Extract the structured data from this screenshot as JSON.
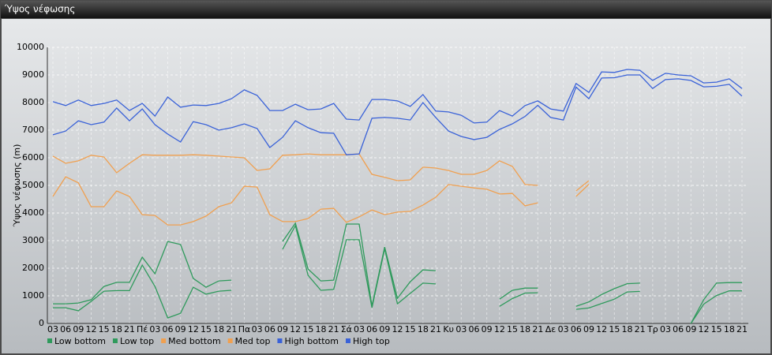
{
  "chart_data": {
    "type": "line",
    "title": "Ύψος νέφωσης",
    "y_label": "Ύψος νέφωσης (m)",
    "categories": [
      "03",
      "06",
      "09",
      "12",
      "15",
      "18",
      "21",
      "Πέ",
      "03",
      "06",
      "09",
      "12",
      "15",
      "18",
      "21",
      "Πα",
      "03",
      "06",
      "09",
      "12",
      "15",
      "18",
      "21",
      "Σά",
      "03",
      "06",
      "09",
      "12",
      "15",
      "18",
      "21",
      "Κυ",
      "03",
      "06",
      "09",
      "12",
      "15",
      "18",
      "21",
      "Δε",
      "03",
      "06",
      "09",
      "12",
      "15",
      "18",
      "21",
      "Τρ",
      "03",
      "06",
      "09",
      "12",
      "15",
      "18",
      "21"
    ],
    "ylim": [
      0,
      10000
    ],
    "yticks": [
      0,
      1000,
      2000,
      3000,
      4000,
      5000,
      6000,
      7000,
      8000,
      9000,
      10000
    ],
    "grid": true,
    "legend": "bottom-left",
    "series": [
      {
        "name": "Low bottom",
        "color": "#2f9a5c",
        "values": [
          570,
          570,
          460,
          800,
          1170,
          1190,
          1190,
          2110,
          1340,
          200,
          370,
          1310,
          1060,
          1170,
          1200,
          null,
          null,
          null,
          2690,
          3540,
          1740,
          1200,
          1230,
          3030,
          3030,
          570,
          2700,
          710,
          1090,
          1460,
          1430,
          null,
          null,
          null,
          null,
          620,
          900,
          1100,
          1110,
          null,
          null,
          510,
          560,
          720,
          880,
          1140,
          1160,
          null,
          null,
          null,
          0,
          700,
          1010,
          1180,
          1180
        ]
      },
      {
        "name": "Low top",
        "color": "#2f9a5c",
        "values": [
          710,
          710,
          740,
          860,
          1340,
          1490,
          1490,
          2400,
          1800,
          2970,
          2860,
          1630,
          1310,
          1540,
          1570,
          null,
          null,
          null,
          2970,
          3630,
          1970,
          1540,
          1570,
          3600,
          3600,
          630,
          2770,
          910,
          1510,
          1940,
          1910,
          null,
          null,
          null,
          null,
          880,
          1200,
          1280,
          1280,
          null,
          null,
          620,
          780,
          1050,
          1260,
          1440,
          1460,
          null,
          null,
          null,
          0,
          860,
          1460,
          1480,
          1480
        ]
      },
      {
        "name": "Med bottom",
        "color": "#f0a050",
        "values": [
          4600,
          5310,
          5090,
          4230,
          4230,
          4800,
          4600,
          3940,
          3910,
          3570,
          3570,
          3690,
          3890,
          4230,
          4370,
          4970,
          4940,
          3940,
          3690,
          3690,
          3800,
          4140,
          4170,
          3660,
          3860,
          4110,
          3940,
          4030,
          4060,
          4290,
          4570,
          5030,
          4970,
          4910,
          4860,
          4690,
          4710,
          4260,
          4370,
          null,
          null,
          4600,
          5040,
          null,
          null,
          null,
          null,
          null,
          null,
          null,
          null,
          null,
          null,
          null,
          null
        ]
      },
      {
        "name": "Med top",
        "color": "#f0a050",
        "values": [
          6060,
          5800,
          5890,
          6090,
          6030,
          5460,
          5800,
          6110,
          6090,
          6090,
          6090,
          6110,
          6090,
          6060,
          6030,
          6000,
          5540,
          5600,
          6090,
          6110,
          6140,
          6110,
          6110,
          6110,
          6140,
          5400,
          5290,
          5170,
          5200,
          5660,
          5630,
          5540,
          5400,
          5400,
          5540,
          5890,
          5690,
          5030,
          5000,
          null,
          null,
          4800,
          5170,
          null,
          null,
          null,
          null,
          null,
          null,
          null,
          null,
          null,
          null,
          null,
          null
        ]
      },
      {
        "name": "High bottom",
        "color": "#3a62d8",
        "values": [
          6830,
          6970,
          7340,
          7200,
          7290,
          7800,
          7340,
          7770,
          7200,
          6860,
          6570,
          7310,
          7200,
          7000,
          7090,
          7230,
          7060,
          6370,
          6740,
          7340,
          7090,
          6910,
          6890,
          6110,
          6140,
          7430,
          7460,
          7430,
          7370,
          8000,
          7460,
          6970,
          6770,
          6660,
          6740,
          7030,
          7230,
          7500,
          7900,
          7460,
          7370,
          8560,
          8140,
          8890,
          8900,
          9000,
          9000,
          8510,
          8830,
          8860,
          8800,
          8570,
          8590,
          8660,
          8230
        ]
      },
      {
        "name": "High top",
        "color": "#3a62d8",
        "values": [
          8030,
          7890,
          8090,
          7890,
          7970,
          8090,
          7710,
          7970,
          7510,
          8200,
          7830,
          7910,
          7890,
          7970,
          8140,
          8460,
          8260,
          7710,
          7710,
          7940,
          7740,
          7770,
          7970,
          7400,
          7370,
          8110,
          8110,
          8060,
          7860,
          8290,
          7690,
          7660,
          7540,
          7260,
          7290,
          7710,
          7510,
          7890,
          8060,
          7770,
          7690,
          8690,
          8370,
          9110,
          9090,
          9200,
          9170,
          8800,
          9060,
          9000,
          8970,
          8710,
          8740,
          8860,
          8510
        ]
      }
    ]
  }
}
